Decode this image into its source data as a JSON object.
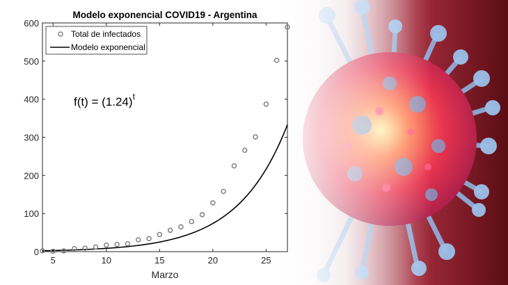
{
  "chart_data": {
    "type": "scatter",
    "title": "Modelo exponencial COVID19 - Argentina",
    "xlabel": "Marzo",
    "ylabel": "",
    "xlim": [
      4,
      27
    ],
    "ylim": [
      0,
      600
    ],
    "xticks": [
      5,
      10,
      15,
      20,
      25
    ],
    "yticks": [
      0,
      100,
      200,
      300,
      400,
      500,
      600
    ],
    "grid": false,
    "legend_position": "top-left",
    "annotation": {
      "base": "f(t) = (1.24)",
      "exponent": "t"
    },
    "series": [
      {
        "name": "Total de infectados",
        "kind": "markers",
        "color": "#808080",
        "x": [
          4,
          5,
          6,
          7,
          8,
          9,
          10,
          11,
          12,
          13,
          14,
          15,
          16,
          17,
          18,
          19,
          20,
          21,
          22,
          23,
          24,
          25,
          26,
          27
        ],
        "y": [
          2,
          1,
          2,
          8,
          9,
          12,
          17,
          19,
          21,
          31,
          34,
          45,
          56,
          65,
          79,
          97,
          128,
          158,
          225,
          266,
          301,
          387,
          502,
          589
        ]
      },
      {
        "name": "Modelo exponencial",
        "kind": "line",
        "color": "#000000",
        "base": 1.24,
        "x_start": 4,
        "x_end": 27
      }
    ]
  },
  "background": {
    "virus_colors": [
      "#e8344f",
      "#7fa6d6",
      "#5a0d14"
    ]
  }
}
